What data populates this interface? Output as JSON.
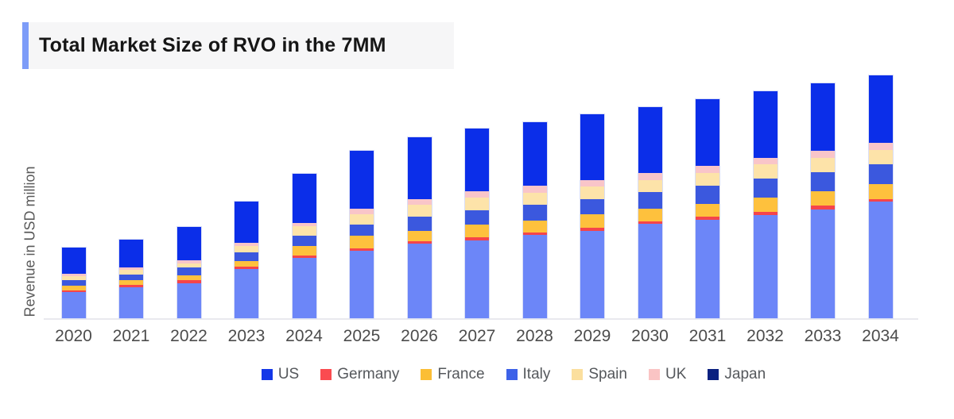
{
  "title": {
    "text": "Total Market Size of RVO in the 7MM"
  },
  "chart_data": {
    "type": "bar",
    "stacked": true,
    "title": "Total Market Size of RVO in the 7MM",
    "xlabel": "",
    "ylabel": "Revenue in USD million",
    "y_axis_ticks": "none shown",
    "units": "relative height (no numeric y-axis tick labels are visible in the image)",
    "grid": false,
    "legend_position": "bottom",
    "categories": [
      "2020",
      "2021",
      "2022",
      "2023",
      "2024",
      "2025",
      "2026",
      "2027",
      "2028",
      "2029",
      "2030",
      "2031",
      "2032",
      "2033",
      "2034"
    ],
    "stack_order_bottom_to_top": [
      "US",
      "Germany",
      "France",
      "Italy",
      "Spain",
      "UK",
      "Japan"
    ],
    "series": [
      {
        "name": "US",
        "bar_color": "#6C86F8",
        "legend_color": "#1437E8",
        "values": [
          33,
          39.5,
          44.5,
          62.5,
          76.5,
          85.5,
          94.5,
          98.5,
          105.5,
          110.5,
          119.5,
          124.5,
          130.5,
          137.5,
          147.5
        ]
      },
      {
        "name": "Germany",
        "bar_color": "#F5444B",
        "legend_color": "#FA4B50",
        "values": [
          2.5,
          3,
          3.5,
          3,
          3,
          3,
          3,
          4,
          3,
          4,
          3,
          4,
          4,
          5,
          3
        ]
      },
      {
        "name": "France",
        "bar_color": "#FEC13D",
        "legend_color": "#FBBE35",
        "values": [
          6,
          5.5,
          6.5,
          7,
          12,
          16,
          13,
          16,
          15,
          17,
          16,
          16,
          18,
          18,
          19
        ]
      },
      {
        "name": "Italy",
        "bar_color": "#3B58DE",
        "legend_color": "#3D62E8",
        "values": [
          7,
          7.5,
          9.5,
          11,
          13,
          14,
          18,
          18,
          20,
          19,
          21,
          23,
          24,
          24,
          25
        ]
      },
      {
        "name": "Spain",
        "bar_color": "#FDE3A9",
        "legend_color": "#FBDF9E",
        "values": [
          5,
          6,
          5.5,
          8,
          12,
          13,
          15,
          16,
          15,
          16,
          15,
          16,
          18,
          18,
          18
        ]
      },
      {
        "name": "UK",
        "bar_color": "#F9C5C9",
        "legend_color": "#FAC4C4",
        "values": [
          3,
          3,
          4,
          4,
          4,
          7,
          7,
          8,
          9,
          8,
          9,
          9,
          8,
          9,
          9
        ]
      },
      {
        "name": "Japan",
        "bar_color": "#0B2EE9",
        "legend_color": "#0B2180",
        "values": [
          33,
          35,
          42,
          52,
          62,
          73,
          78,
          79,
          80,
          83,
          83,
          84,
          84,
          85,
          85
        ]
      }
    ]
  },
  "colors": {
    "title_accent": "#7D9CF8",
    "title_bg": "#F6F6F7",
    "axis_line": "#E9E9EE",
    "axis_label": "#4C4C4C",
    "legend_label": "#55585C",
    "background": "#FFFFFF"
  }
}
